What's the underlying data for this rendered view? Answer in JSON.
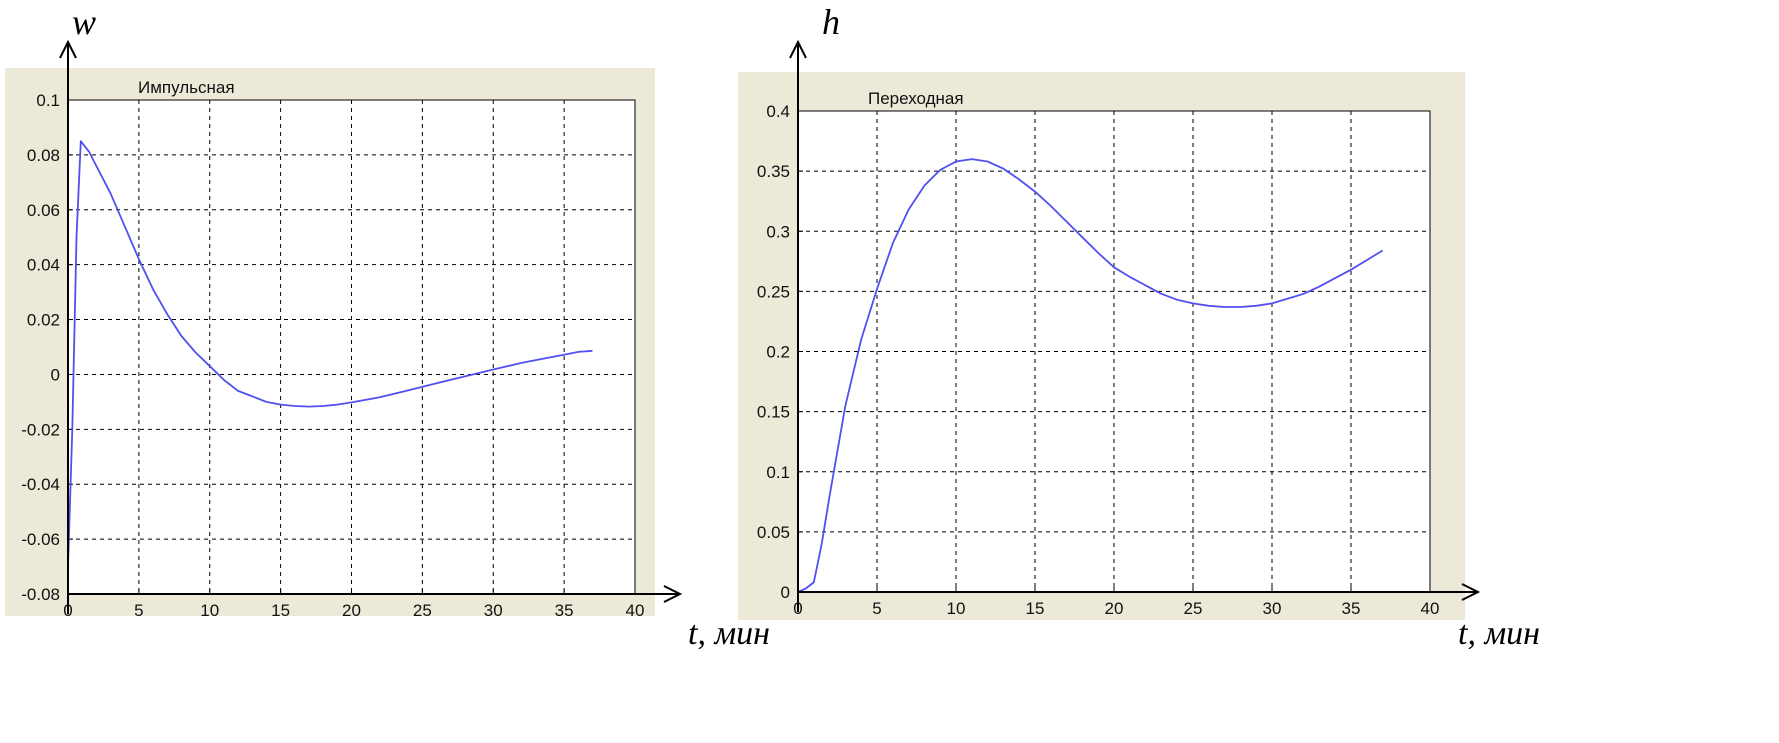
{
  "colors": {
    "background": "#ece9d8",
    "plot": "#ffffff",
    "line": "#5050f0",
    "grid": "#000000"
  },
  "chart_data": [
    {
      "type": "line",
      "title": "Импульсная",
      "ylabel": "w",
      "xlabel": "t, мин",
      "xlim": [
        0,
        40
      ],
      "ylim": [
        -0.08,
        0.1
      ],
      "x_ticks": [
        "0",
        "5",
        "10",
        "15",
        "20",
        "25",
        "30",
        "35",
        "40"
      ],
      "y_ticks": [
        "-0.08",
        "-0.06",
        "-0.04",
        "-0.02",
        "0",
        "0.02",
        "0.04",
        "0.06",
        "0.08",
        "0.1"
      ],
      "grid": true,
      "series": [
        {
          "x": [
            0,
            0.3,
            0.6,
            0.9,
            1.5,
            2,
            3,
            4,
            5,
            6,
            7,
            8,
            9,
            10,
            11,
            12,
            13,
            14,
            15,
            16,
            17,
            18,
            19,
            20,
            22,
            24,
            26,
            28,
            30,
            32,
            34,
            35,
            36,
            37
          ],
          "values": [
            -0.07,
            -0.02,
            0.05,
            0.085,
            0.081,
            0.076,
            0.066,
            0.054,
            0.042,
            0.031,
            0.022,
            0.014,
            0.008,
            0.003,
            -0.002,
            -0.006,
            -0.008,
            -0.01,
            -0.011,
            -0.0115,
            -0.0117,
            -0.0115,
            -0.011,
            -0.0102,
            -0.0083,
            -0.0058,
            -0.0032,
            -0.0007,
            0.0018,
            0.0042,
            0.0062,
            0.0072,
            0.0082,
            0.0086
          ]
        }
      ]
    },
    {
      "type": "line",
      "title": "Переходная",
      "ylabel": "h",
      "xlabel": "t, мин",
      "xlim": [
        0,
        40
      ],
      "ylim": [
        0,
        0.4
      ],
      "x_ticks": [
        "0",
        "5",
        "10",
        "15",
        "20",
        "25",
        "30",
        "35",
        "40"
      ],
      "y_ticks": [
        "0",
        "0.05",
        "0.1",
        "0.15",
        "0.2",
        "0.25",
        "0.3",
        "0.35",
        "0.4"
      ],
      "grid": true,
      "series": [
        {
          "x": [
            0,
            0.5,
            1,
            1.5,
            2,
            3,
            4,
            5,
            6,
            7,
            8,
            9,
            10,
            11,
            12,
            13,
            14,
            15,
            16,
            17,
            18,
            19,
            20,
            21,
            22,
            23,
            24,
            25,
            26,
            27,
            28,
            29,
            30,
            31,
            32,
            33,
            34,
            35,
            36,
            37
          ],
          "values": [
            0,
            0.003,
            0.008,
            0.04,
            0.08,
            0.155,
            0.21,
            0.252,
            0.29,
            0.318,
            0.338,
            0.351,
            0.358,
            0.36,
            0.358,
            0.352,
            0.343,
            0.333,
            0.321,
            0.308,
            0.295,
            0.282,
            0.27,
            0.262,
            0.255,
            0.248,
            0.243,
            0.24,
            0.238,
            0.237,
            0.237,
            0.238,
            0.24,
            0.244,
            0.248,
            0.254,
            0.261,
            0.268,
            0.276,
            0.284
          ]
        }
      ]
    }
  ]
}
